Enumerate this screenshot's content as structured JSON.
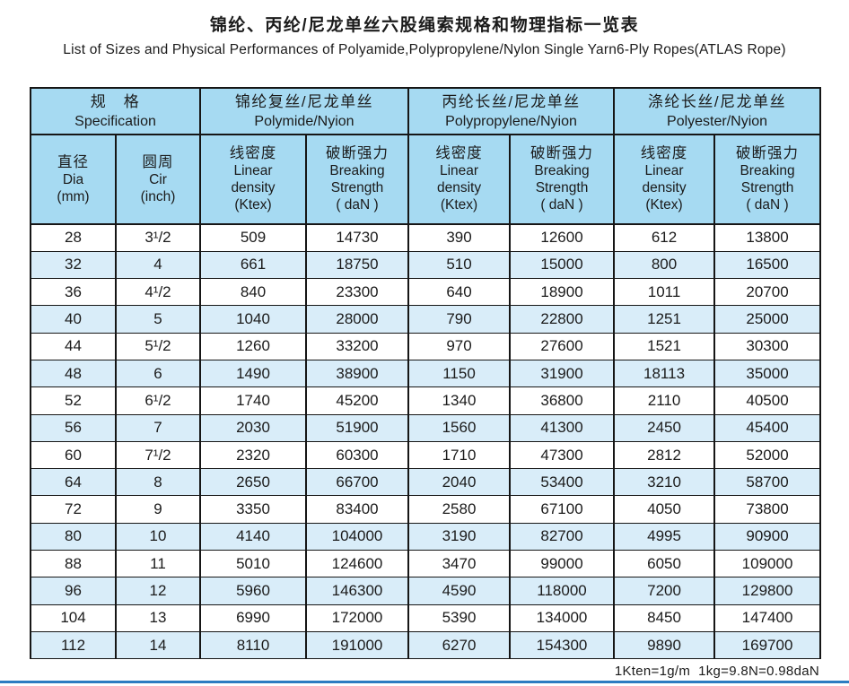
{
  "page": {
    "title": "锦纶、丙纶/尼龙单丝六股绳索规格和物理指标一览表",
    "subtitle": "List of Sizes and Physical Performances of Polyamide,Polypropylene/Nylon Single Yarn6-Ply Ropes(ATLAS Rope)",
    "footnote": "1Kten=1g/m  1kg=9.8N=0.98daN"
  },
  "colors": {
    "header_bg": "#a6daf2",
    "row_alt_bg": "#d9edf9",
    "row_bg": "#ffffff",
    "border": "#161616",
    "bottom_rule": "#2d7cc1"
  },
  "table": {
    "groups": [
      {
        "id": "specification",
        "zh": "规　格",
        "en": "Specification",
        "colspan": 2
      },
      {
        "id": "polyamide",
        "zh": "锦纶复丝/尼龙单丝",
        "en": "Polymide/Nyion",
        "colspan": 2
      },
      {
        "id": "polypropylene",
        "zh": "丙纶长丝/尼龙单丝",
        "en": "Polypropylene/Nyion",
        "colspan": 2
      },
      {
        "id": "polyester",
        "zh": "涤纶长丝/尼龙单丝",
        "en": "Polyester/Nyion",
        "colspan": 2
      }
    ],
    "columns": [
      {
        "id": "dia",
        "lines": [
          "直径",
          "Dia",
          "(mm)"
        ]
      },
      {
        "id": "cir",
        "lines": [
          "圆周",
          "Cir",
          "(inch)"
        ]
      },
      {
        "id": "pa-linear-density",
        "lines": [
          "线密度",
          "Linear",
          "density",
          "(Ktex)"
        ]
      },
      {
        "id": "pa-breaking-strength",
        "lines": [
          "破断强力",
          "Breaking",
          "Strength",
          "( daN )"
        ]
      },
      {
        "id": "pp-linear-density",
        "lines": [
          "线密度",
          "Linear",
          "density",
          "(Ktex)"
        ]
      },
      {
        "id": "pp-breaking-strength",
        "lines": [
          "破断强力",
          "Breaking",
          "Strength",
          "( daN )"
        ]
      },
      {
        "id": "pe-linear-density",
        "lines": [
          "线密度",
          "Linear",
          "density",
          "(Ktex)"
        ]
      },
      {
        "id": "pe-breaking-strength",
        "lines": [
          "破断强力",
          "Breaking",
          "Strength",
          "( daN )"
        ]
      }
    ],
    "rows": [
      [
        "28",
        "3¹/2",
        "509",
        "14730",
        "390",
        "12600",
        "612",
        "13800"
      ],
      [
        "32",
        "4",
        "661",
        "18750",
        "510",
        "15000",
        "800",
        "16500"
      ],
      [
        "36",
        "4¹/2",
        "840",
        "23300",
        "640",
        "18900",
        "1011",
        "20700"
      ],
      [
        "40",
        "5",
        "1040",
        "28000",
        "790",
        "22800",
        "1251",
        "25000"
      ],
      [
        "44",
        "5¹/2",
        "1260",
        "33200",
        "970",
        "27600",
        "1521",
        "30300"
      ],
      [
        "48",
        "6",
        "1490",
        "38900",
        "1150",
        "31900",
        "18113",
        "35000"
      ],
      [
        "52",
        "6¹/2",
        "1740",
        "45200",
        "1340",
        "36800",
        "2110",
        "40500"
      ],
      [
        "56",
        "7",
        "2030",
        "51900",
        "1560",
        "41300",
        "2450",
        "45400"
      ],
      [
        "60",
        "7¹/2",
        "2320",
        "60300",
        "1710",
        "47300",
        "2812",
        "52000"
      ],
      [
        "64",
        "8",
        "2650",
        "66700",
        "2040",
        "53400",
        "3210",
        "58700"
      ],
      [
        "72",
        "9",
        "3350",
        "83400",
        "2580",
        "67100",
        "4050",
        "73800"
      ],
      [
        "80",
        "10",
        "4140",
        "104000",
        "3190",
        "82700",
        "4995",
        "90900"
      ],
      [
        "88",
        "11",
        "5010",
        "124600",
        "3470",
        "99000",
        "6050",
        "109000"
      ],
      [
        "96",
        "12",
        "5960",
        "146300",
        "4590",
        "118000",
        "7200",
        "129800"
      ],
      [
        "104",
        "13",
        "6990",
        "172000",
        "5390",
        "134000",
        "8450",
        "147400"
      ],
      [
        "112",
        "14",
        "8110",
        "191000",
        "6270",
        "154300",
        "9890",
        "169700"
      ]
    ]
  }
}
